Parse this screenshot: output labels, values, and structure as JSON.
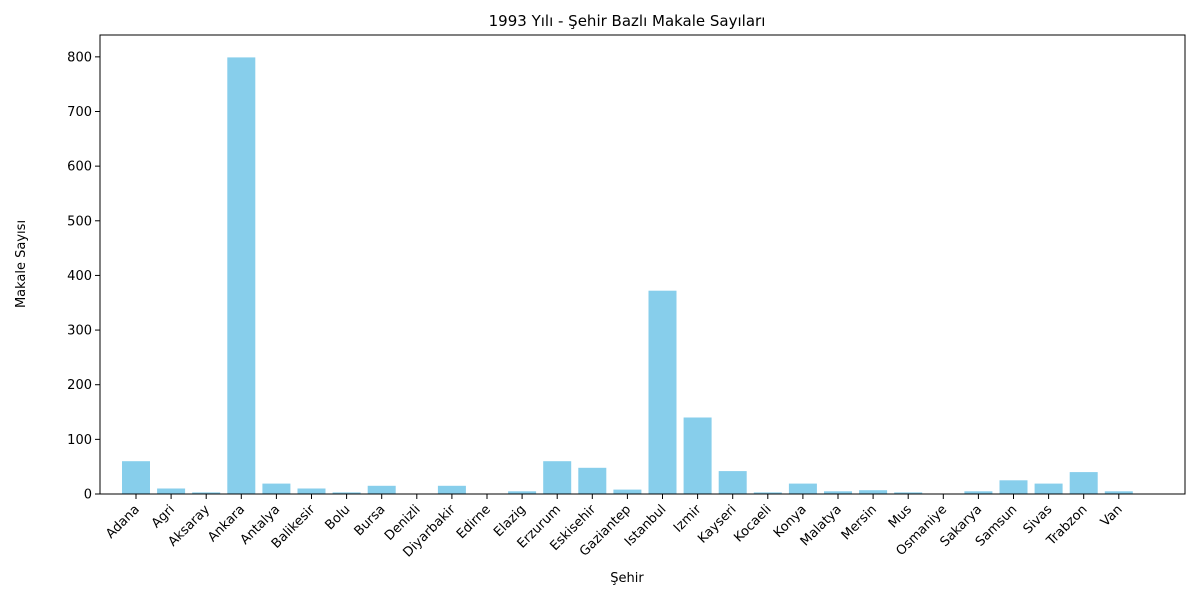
{
  "chart_data": {
    "type": "bar",
    "title": "1993 Yılı - Şehir Bazlı Makale Sayıları",
    "xlabel": "Şehir",
    "ylabel": "Makale Sayısı",
    "ylim": [
      0,
      840
    ],
    "yticks": [
      0,
      100,
      200,
      300,
      400,
      500,
      600,
      700,
      800
    ],
    "grid": false,
    "bar_color": "#87ceeb",
    "categories": [
      "Adana",
      "Agri",
      "Aksaray",
      "Ankara",
      "Antalya",
      "Balikesir",
      "Bolu",
      "Bursa",
      "Denizli",
      "Diyarbakir",
      "Edirne",
      "Elazig",
      "Erzurum",
      "Eskisehir",
      "Gaziantep",
      "Istanbul",
      "Izmir",
      "Kayseri",
      "Kocaeli",
      "Konya",
      "Malatya",
      "Mersin",
      "Mus",
      "Osmaniye",
      "Sakarya",
      "Samsun",
      "Sivas",
      "Trabzon",
      "Van"
    ],
    "values": [
      60,
      10,
      3,
      799,
      19,
      10,
      3,
      15,
      1,
      15,
      1,
      5,
      60,
      48,
      8,
      372,
      140,
      42,
      3,
      19,
      5,
      7,
      3,
      1,
      5,
      25,
      19,
      40,
      5
    ]
  }
}
